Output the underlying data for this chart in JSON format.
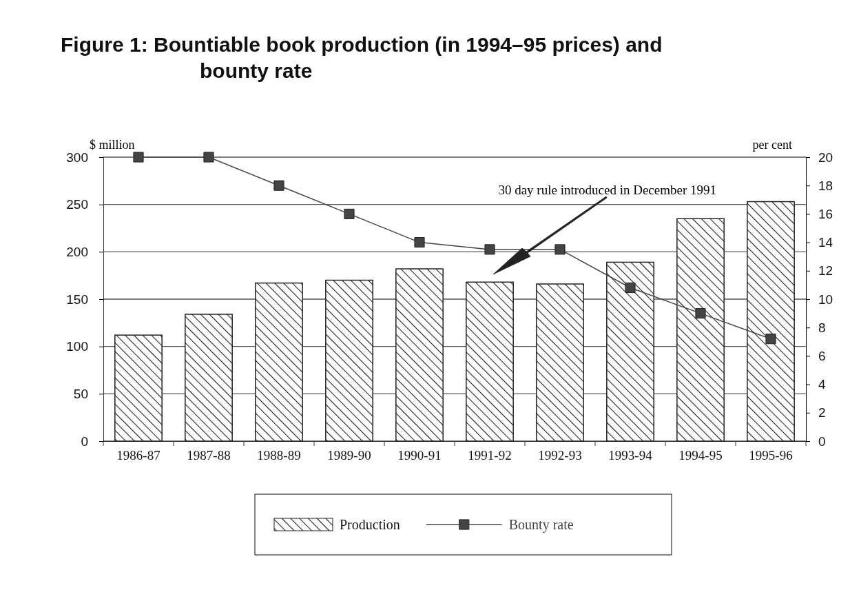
{
  "chart_data": {
    "type": "bar",
    "title": "Figure 1: Bountiable book production (in 1994–95 prices) and bounty rate",
    "ylabel": "$ million",
    "y2label": "per cent",
    "categories": [
      "1986-87",
      "1987-88",
      "1988-89",
      "1989-90",
      "1990-91",
      "1991-92",
      "1992-93",
      "1993-94",
      "1994-95",
      "1995-96"
    ],
    "series": [
      {
        "name": "Production",
        "color": "#222222",
        "values": [
          112,
          134,
          167,
          170,
          182,
          168,
          166,
          189,
          235,
          253
        ]
      },
      {
        "name": "Bounty rate",
        "type": "line",
        "axis": "y2",
        "color": "#444444",
        "marker": "square",
        "line_style": "solid",
        "values": [
          20,
          20,
          18,
          16,
          14,
          13.5,
          13.5,
          10.8,
          9,
          7.2
        ]
      }
    ],
    "ylim": [
      0,
      300
    ],
    "yticks": [
      0,
      50,
      100,
      150,
      200,
      250,
      300
    ],
    "y2lim": [
      0,
      20
    ],
    "y2ticks": [
      0,
      2,
      4,
      6,
      8,
      10,
      12,
      14,
      16,
      18,
      20
    ],
    "grid": "y",
    "legend": "bottom",
    "annotations": [
      "30 day rule introduced in December 1991"
    ]
  }
}
